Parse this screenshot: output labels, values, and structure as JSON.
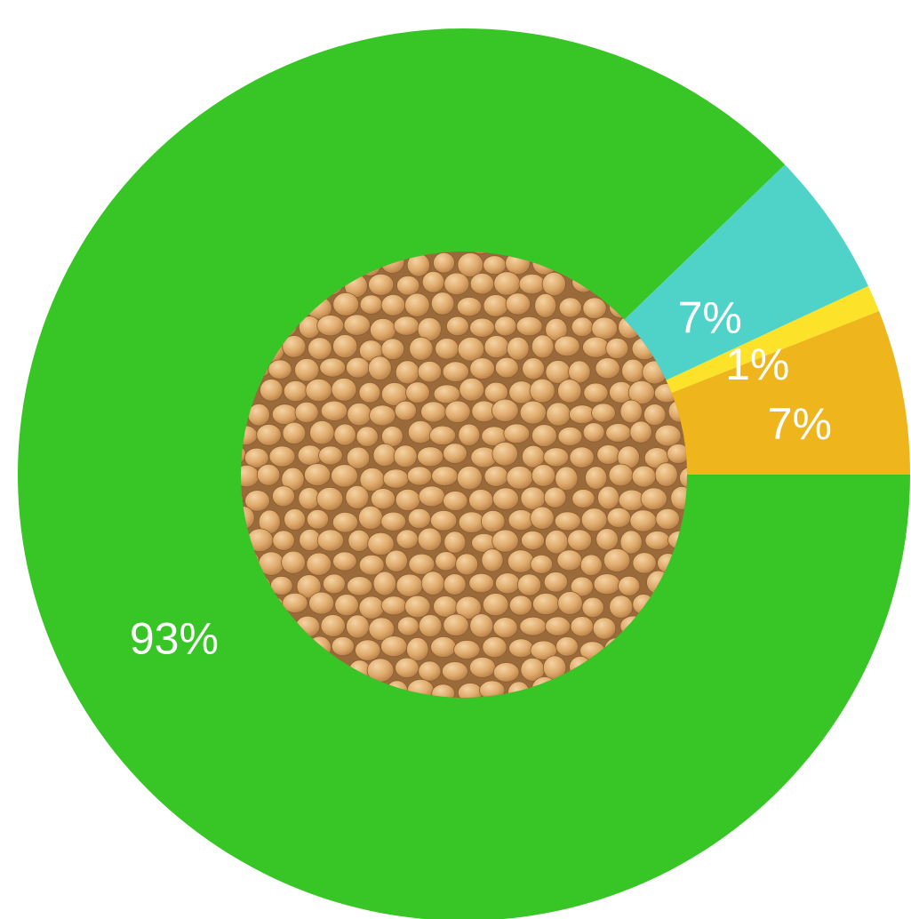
{
  "chart_data": {
    "type": "pie",
    "style": "donut",
    "center_image": "soybeans",
    "slices": [
      {
        "label": "93%",
        "value": 93,
        "color": "#38C526"
      },
      {
        "label": "7%",
        "value": 7,
        "color": "#4FD3C9"
      },
      {
        "label": "1%",
        "value": 1,
        "color": "#FDE22A"
      },
      {
        "label": "7%",
        "value": 7,
        "color": "#EEB61C"
      }
    ]
  }
}
